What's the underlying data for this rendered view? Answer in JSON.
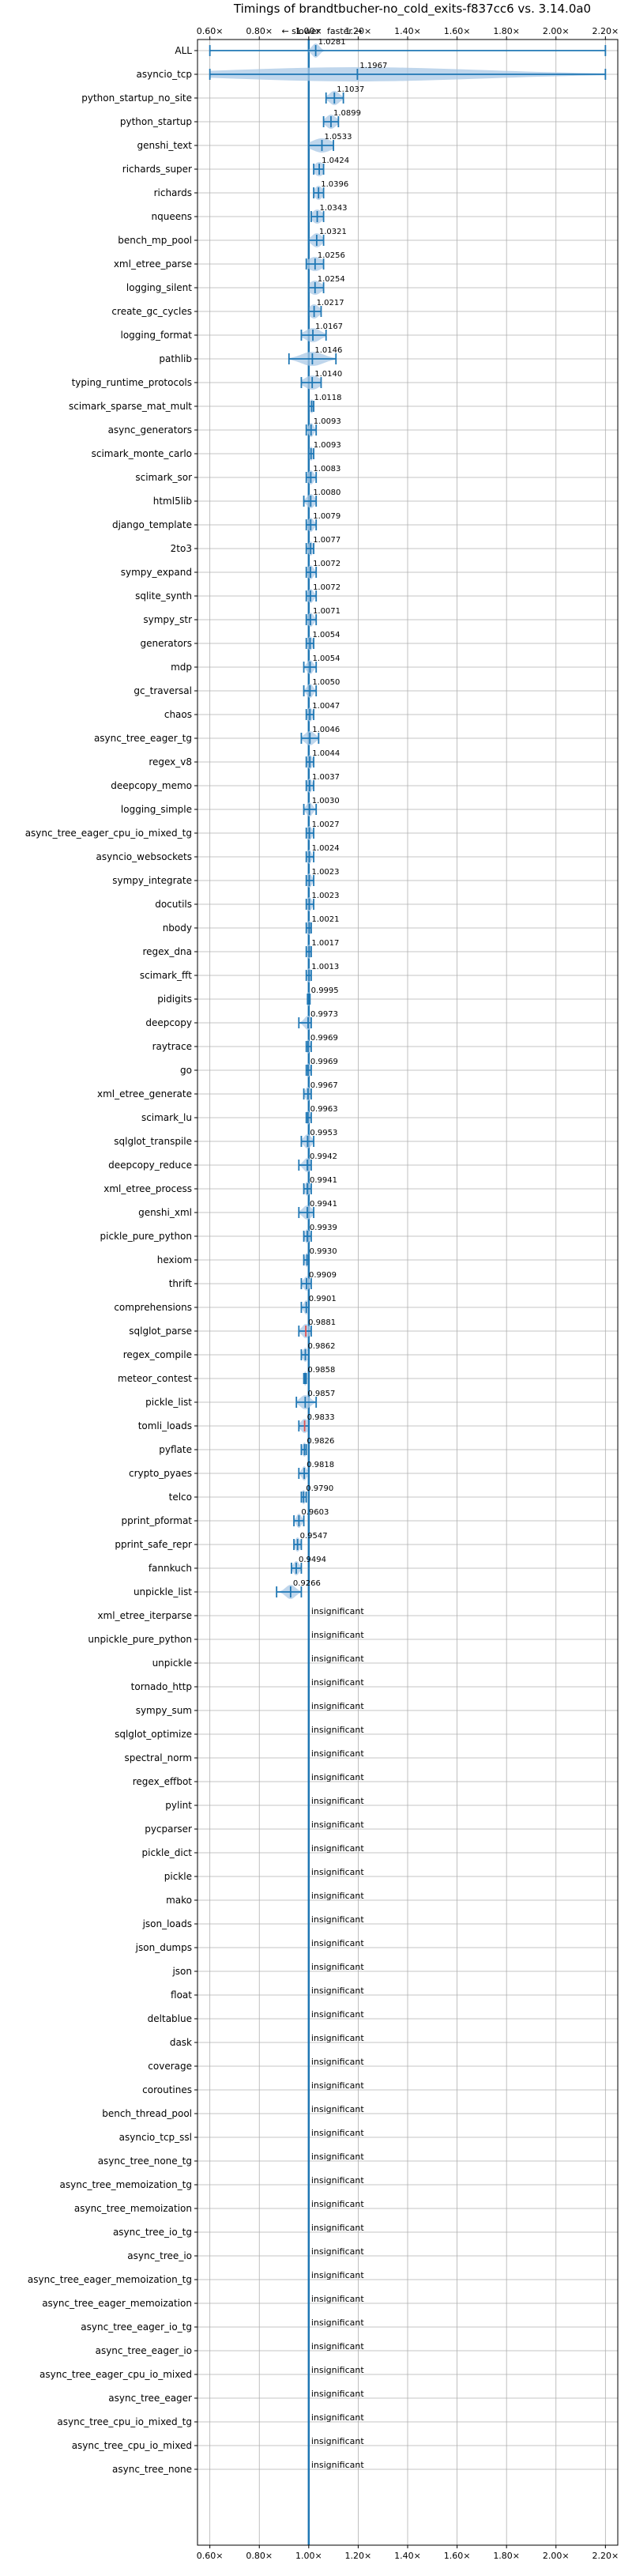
{
  "chart_data": {
    "type": "violin",
    "title": "Timings of brandtbucher-no_cold_exits-f837cc6 vs. 3.14.0a0",
    "direction_labels": {
      "slower": "← slower",
      "faster": "faster →"
    },
    "xlim": [
      0.55,
      2.25
    ],
    "x_ticks": [
      0.6,
      0.8,
      1.0,
      1.2,
      1.4,
      1.6,
      1.8,
      2.0,
      2.2
    ],
    "x_tick_labels": [
      "0.60×",
      "0.80×",
      "1.00×",
      "1.20×",
      "1.40×",
      "1.60×",
      "1.80×",
      "2.00×",
      "2.20×"
    ],
    "grid": true,
    "reference_line": 1.0,
    "insignificant_label": "insignificant",
    "colors": {
      "violin": "#aac8e6",
      "line": "#1f77b4",
      "median_red": "#e05050",
      "grid": "#b0b0b0",
      "reference": "#1f77b4"
    },
    "benchmarks": [
      {
        "name": "ALL",
        "label": "1.0281",
        "median": 1.0281,
        "min": 0.6,
        "max": 2.2,
        "spread": 0.015
      },
      {
        "name": "asyncio_tcp",
        "label": "1.1967",
        "median": 1.1967,
        "min": 0.6,
        "max": 2.2,
        "spread": 0.5
      },
      {
        "name": "python_startup_no_site",
        "label": "1.1037",
        "median": 1.1037,
        "min": 1.07,
        "max": 1.14,
        "spread": 0.02
      },
      {
        "name": "python_startup",
        "label": "1.0899",
        "median": 1.0899,
        "min": 1.06,
        "max": 1.12,
        "spread": 0.02
      },
      {
        "name": "genshi_text",
        "label": "1.0533",
        "median": 1.0533,
        "min": 1.0,
        "max": 1.1,
        "spread": 0.04
      },
      {
        "name": "richards_super",
        "label": "1.0424",
        "median": 1.0424,
        "min": 1.02,
        "max": 1.06,
        "spread": 0.02
      },
      {
        "name": "richards",
        "label": "1.0396",
        "median": 1.0396,
        "min": 1.02,
        "max": 1.06,
        "spread": 0.015
      },
      {
        "name": "nqueens",
        "label": "1.0343",
        "median": 1.0343,
        "min": 1.01,
        "max": 1.06,
        "spread": 0.02
      },
      {
        "name": "bench_mp_pool",
        "label": "1.0321",
        "median": 1.0321,
        "min": 1.0,
        "max": 1.06,
        "spread": 0.02
      },
      {
        "name": "xml_etree_parse",
        "label": "1.0256",
        "median": 1.0256,
        "min": 0.99,
        "max": 1.06,
        "spread": 0.03
      },
      {
        "name": "logging_silent",
        "label": "1.0254",
        "median": 1.0254,
        "min": 1.0,
        "max": 1.06,
        "spread": 0.025
      },
      {
        "name": "create_gc_cycles",
        "label": "1.0217",
        "median": 1.0217,
        "min": 1.0,
        "max": 1.05,
        "spread": 0.02
      },
      {
        "name": "logging_format",
        "label": "1.0167",
        "median": 1.0167,
        "min": 0.97,
        "max": 1.07,
        "spread": 0.03
      },
      {
        "name": "pathlib",
        "label": "1.0146",
        "median": 1.0146,
        "min": 0.92,
        "max": 1.11,
        "spread": 0.045
      },
      {
        "name": "typing_runtime_protocols",
        "label": "1.0140",
        "median": 1.014,
        "min": 0.97,
        "max": 1.05,
        "spread": 0.03
      },
      {
        "name": "scimark_sparse_mat_mult",
        "label": "1.0118",
        "median": 1.0118,
        "min": 1.0,
        "max": 1.02,
        "spread": 0.008
      },
      {
        "name": "async_generators",
        "label": "1.0093",
        "median": 1.0093,
        "min": 0.99,
        "max": 1.03,
        "spread": 0.01
      },
      {
        "name": "scimark_monte_carlo",
        "label": "1.0093",
        "median": 1.0093,
        "min": 1.0,
        "max": 1.02,
        "spread": 0.008
      },
      {
        "name": "scimark_sor",
        "label": "1.0083",
        "median": 1.0083,
        "min": 0.99,
        "max": 1.03,
        "spread": 0.012
      },
      {
        "name": "html5lib",
        "label": "1.0080",
        "median": 1.008,
        "min": 0.98,
        "max": 1.03,
        "spread": 0.015
      },
      {
        "name": "django_template",
        "label": "1.0079",
        "median": 1.0079,
        "min": 0.99,
        "max": 1.03,
        "spread": 0.012
      },
      {
        "name": "2to3",
        "label": "1.0077",
        "median": 1.0077,
        "min": 0.99,
        "max": 1.02,
        "spread": 0.01
      },
      {
        "name": "sympy_expand",
        "label": "1.0072",
        "median": 1.0072,
        "min": 0.99,
        "max": 1.03,
        "spread": 0.012
      },
      {
        "name": "sqlite_synth",
        "label": "1.0072",
        "median": 1.0072,
        "min": 0.99,
        "max": 1.03,
        "spread": 0.012
      },
      {
        "name": "sympy_str",
        "label": "1.0071",
        "median": 1.0071,
        "min": 0.99,
        "max": 1.03,
        "spread": 0.012
      },
      {
        "name": "generators",
        "label": "1.0054",
        "median": 1.0054,
        "min": 0.99,
        "max": 1.02,
        "spread": 0.01
      },
      {
        "name": "mdp",
        "label": "1.0054",
        "median": 1.0054,
        "min": 0.98,
        "max": 1.03,
        "spread": 0.012
      },
      {
        "name": "gc_traversal",
        "label": "1.0050",
        "median": 1.005,
        "min": 0.98,
        "max": 1.03,
        "spread": 0.012
      },
      {
        "name": "chaos",
        "label": "1.0047",
        "median": 1.0047,
        "min": 0.99,
        "max": 1.02,
        "spread": 0.01
      },
      {
        "name": "async_tree_eager_tg",
        "label": "1.0046",
        "median": 1.0046,
        "min": 0.97,
        "max": 1.04,
        "spread": 0.02
      },
      {
        "name": "regex_v8",
        "label": "1.0044",
        "median": 1.0044,
        "min": 0.99,
        "max": 1.02,
        "spread": 0.01
      },
      {
        "name": "deepcopy_memo",
        "label": "1.0037",
        "median": 1.0037,
        "min": 0.99,
        "max": 1.02,
        "spread": 0.01
      },
      {
        "name": "logging_simple",
        "label": "1.0030",
        "median": 1.003,
        "min": 0.98,
        "max": 1.03,
        "spread": 0.012
      },
      {
        "name": "async_tree_eager_cpu_io_mixed_tg",
        "label": "1.0027",
        "median": 1.0027,
        "min": 0.99,
        "max": 1.02,
        "spread": 0.01
      },
      {
        "name": "asyncio_websockets",
        "label": "1.0024",
        "median": 1.0024,
        "min": 0.99,
        "max": 1.02,
        "spread": 0.008
      },
      {
        "name": "sympy_integrate",
        "label": "1.0023",
        "median": 1.0023,
        "min": 0.99,
        "max": 1.02,
        "spread": 0.01
      },
      {
        "name": "docutils",
        "label": "1.0023",
        "median": 1.0023,
        "min": 0.99,
        "max": 1.02,
        "spread": 0.01
      },
      {
        "name": "nbody",
        "label": "1.0021",
        "median": 1.0021,
        "min": 0.99,
        "max": 1.01,
        "spread": 0.008
      },
      {
        "name": "regex_dna",
        "label": "1.0017",
        "median": 1.0017,
        "min": 0.99,
        "max": 1.01,
        "spread": 0.008
      },
      {
        "name": "scimark_fft",
        "label": "1.0013",
        "median": 1.0013,
        "min": 0.99,
        "max": 1.01,
        "spread": 0.008
      },
      {
        "name": "pidigits",
        "label": "0.9995",
        "median": 0.9995,
        "min": 0.995,
        "max": 1.005,
        "spread": 0.004
      },
      {
        "name": "deepcopy",
        "label": "0.9973",
        "median": 0.9973,
        "min": 0.96,
        "max": 1.01,
        "spread": 0.015
      },
      {
        "name": "raytrace",
        "label": "0.9969",
        "median": 0.9969,
        "min": 0.99,
        "max": 1.01,
        "spread": 0.008
      },
      {
        "name": "go",
        "label": "0.9969",
        "median": 0.9969,
        "min": 0.99,
        "max": 1.01,
        "spread": 0.008
      },
      {
        "name": "xml_etree_generate",
        "label": "0.9967",
        "median": 0.9967,
        "min": 0.98,
        "max": 1.01,
        "spread": 0.01
      },
      {
        "name": "scimark_lu",
        "label": "0.9963",
        "median": 0.9963,
        "min": 0.99,
        "max": 1.01,
        "spread": 0.008
      },
      {
        "name": "sqlglot_transpile",
        "label": "0.9953",
        "median": 0.9953,
        "min": 0.97,
        "max": 1.02,
        "spread": 0.015
      },
      {
        "name": "deepcopy_reduce",
        "label": "0.9942",
        "median": 0.9942,
        "min": 0.96,
        "max": 1.01,
        "spread": 0.015
      },
      {
        "name": "xml_etree_process",
        "label": "0.9941",
        "median": 0.9941,
        "min": 0.98,
        "max": 1.01,
        "spread": 0.01
      },
      {
        "name": "genshi_xml",
        "label": "0.9941",
        "median": 0.9941,
        "min": 0.96,
        "max": 1.02,
        "spread": 0.018
      },
      {
        "name": "pickle_pure_python",
        "label": "0.9939",
        "median": 0.9939,
        "min": 0.98,
        "max": 1.01,
        "spread": 0.01
      },
      {
        "name": "hexiom",
        "label": "0.9930",
        "median": 0.993,
        "min": 0.98,
        "max": 1.0,
        "spread": 0.008
      },
      {
        "name": "thrift",
        "label": "0.9909",
        "median": 0.9909,
        "min": 0.97,
        "max": 1.01,
        "spread": 0.012
      },
      {
        "name": "comprehensions",
        "label": "0.9901",
        "median": 0.9901,
        "min": 0.97,
        "max": 1.0,
        "spread": 0.01
      },
      {
        "name": "sqlglot_parse",
        "label": "0.9881",
        "median": 0.9881,
        "min": 0.96,
        "max": 1.01,
        "spread": 0.015,
        "red": true
      },
      {
        "name": "regex_compile",
        "label": "0.9862",
        "median": 0.9862,
        "min": 0.97,
        "max": 1.0,
        "spread": 0.01
      },
      {
        "name": "meteor_contest",
        "label": "0.9858",
        "median": 0.9858,
        "min": 0.98,
        "max": 0.99,
        "spread": 0.006
      },
      {
        "name": "pickle_list",
        "label": "0.9857",
        "median": 0.9857,
        "min": 0.95,
        "max": 1.03,
        "spread": 0.02
      },
      {
        "name": "tomli_loads",
        "label": "0.9833",
        "median": 0.9833,
        "min": 0.96,
        "max": 1.0,
        "spread": 0.015,
        "red": true
      },
      {
        "name": "pyflate",
        "label": "0.9826",
        "median": 0.9826,
        "min": 0.97,
        "max": 0.99,
        "spread": 0.008
      },
      {
        "name": "crypto_pyaes",
        "label": "0.9818",
        "median": 0.9818,
        "min": 0.96,
        "max": 1.0,
        "spread": 0.01
      },
      {
        "name": "telco",
        "label": "0.9790",
        "median": 0.979,
        "min": 0.97,
        "max": 0.99,
        "spread": 0.008
      },
      {
        "name": "pprint_pformat",
        "label": "0.9603",
        "median": 0.9603,
        "min": 0.94,
        "max": 0.98,
        "spread": 0.01
      },
      {
        "name": "pprint_safe_repr",
        "label": "0.9547",
        "median": 0.9547,
        "min": 0.94,
        "max": 0.97,
        "spread": 0.01
      },
      {
        "name": "fannkuch",
        "label": "0.9494",
        "median": 0.9494,
        "min": 0.93,
        "max": 0.97,
        "spread": 0.012
      },
      {
        "name": "unpickle_list",
        "label": "0.9266",
        "median": 0.9266,
        "min": 0.87,
        "max": 0.97,
        "spread": 0.02
      },
      {
        "name": "xml_etree_iterparse",
        "insignificant": true
      },
      {
        "name": "unpickle_pure_python",
        "insignificant": true
      },
      {
        "name": "unpickle",
        "insignificant": true
      },
      {
        "name": "tornado_http",
        "insignificant": true
      },
      {
        "name": "sympy_sum",
        "insignificant": true
      },
      {
        "name": "sqlglot_optimize",
        "insignificant": true
      },
      {
        "name": "spectral_norm",
        "insignificant": true
      },
      {
        "name": "regex_effbot",
        "insignificant": true
      },
      {
        "name": "pylint",
        "insignificant": true
      },
      {
        "name": "pycparser",
        "insignificant": true
      },
      {
        "name": "pickle_dict",
        "insignificant": true
      },
      {
        "name": "pickle",
        "insignificant": true
      },
      {
        "name": "mako",
        "insignificant": true
      },
      {
        "name": "json_loads",
        "insignificant": true
      },
      {
        "name": "json_dumps",
        "insignificant": true
      },
      {
        "name": "json",
        "insignificant": true
      },
      {
        "name": "float",
        "insignificant": true
      },
      {
        "name": "deltablue",
        "insignificant": true
      },
      {
        "name": "dask",
        "insignificant": true
      },
      {
        "name": "coverage",
        "insignificant": true
      },
      {
        "name": "coroutines",
        "insignificant": true
      },
      {
        "name": "bench_thread_pool",
        "insignificant": true
      },
      {
        "name": "asyncio_tcp_ssl",
        "insignificant": true
      },
      {
        "name": "async_tree_none_tg",
        "insignificant": true
      },
      {
        "name": "async_tree_memoization_tg",
        "insignificant": true
      },
      {
        "name": "async_tree_memoization",
        "insignificant": true
      },
      {
        "name": "async_tree_io_tg",
        "insignificant": true
      },
      {
        "name": "async_tree_io",
        "insignificant": true
      },
      {
        "name": "async_tree_eager_memoization_tg",
        "insignificant": true
      },
      {
        "name": "async_tree_eager_memoization",
        "insignificant": true
      },
      {
        "name": "async_tree_eager_io_tg",
        "insignificant": true
      },
      {
        "name": "async_tree_eager_io",
        "insignificant": true
      },
      {
        "name": "async_tree_eager_cpu_io_mixed",
        "insignificant": true
      },
      {
        "name": "async_tree_eager",
        "insignificant": true
      },
      {
        "name": "async_tree_cpu_io_mixed_tg",
        "insignificant": true
      },
      {
        "name": "async_tree_cpu_io_mixed",
        "insignificant": true
      },
      {
        "name": "async_tree_none",
        "insignificant": true
      }
    ]
  }
}
